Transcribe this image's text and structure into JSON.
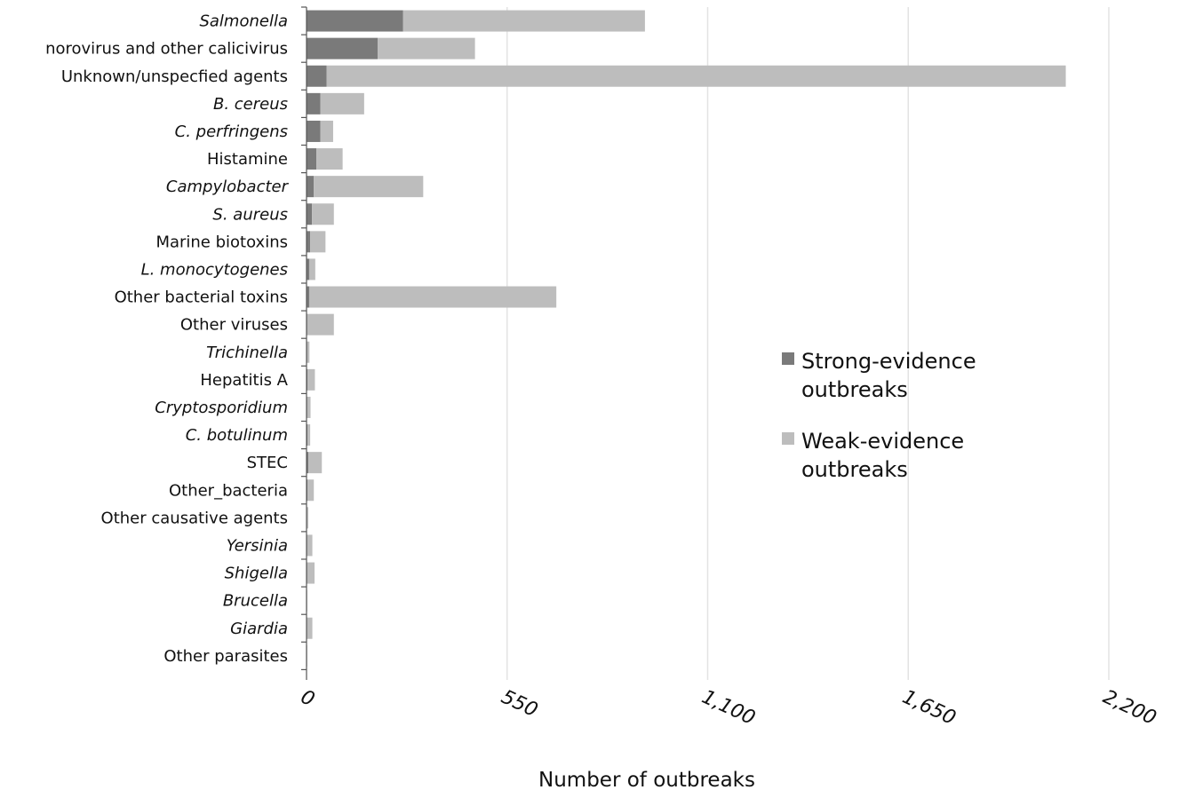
{
  "chart_data": {
    "type": "bar",
    "orientation": "horizontal",
    "stacked": true,
    "categories": [
      "Salmonella",
      "norovirus and other calicivirus",
      "Unknown/unspecfied agents",
      "B. cereus",
      "C. perfringens",
      "Histamine",
      "Campylobacter",
      "S. aureus",
      "Marine biotoxins",
      "L. monocytogenes",
      "Other bacterial toxins",
      "Other viruses",
      "Trichinella",
      "Hepatitis A",
      "Cryptosporidium",
      "C. botulinum",
      "STEC",
      "Other_bacteria",
      "Other causative agents",
      "Yersinia",
      "Shigella",
      "Brucella",
      "Giardia",
      "Other parasites"
    ],
    "italic_categories": [
      "Salmonella",
      "B. cereus",
      "C. perfringens",
      "Campylobacter",
      "S. aureus",
      "L. monocytogenes",
      "Trichinella",
      "Cryptosporidium",
      "C. botulinum",
      "Yersinia",
      "Shigella",
      "Brucella",
      "Giardia"
    ],
    "series": [
      {
        "name": "Strong-evidence outbreaks",
        "color": "#7a7a7a",
        "values": [
          265,
          195,
          55,
          38,
          38,
          27,
          20,
          15,
          10,
          8,
          8,
          2,
          2,
          3,
          2,
          3,
          5,
          3,
          1,
          2,
          2,
          0,
          1,
          0
        ]
      },
      {
        "name": "Weak-evidence outbreaks",
        "color": "#bdbdbd",
        "values": [
          663,
          267,
          2027,
          120,
          35,
          72,
          300,
          60,
          42,
          16,
          677,
          73,
          6,
          20,
          9,
          7,
          37,
          17,
          4,
          14,
          20,
          1,
          15,
          1
        ]
      }
    ],
    "xlabel": "Number of outbreaks",
    "ylabel": "",
    "xlim": [
      0,
      2200
    ],
    "xticks": [
      0,
      550,
      1100,
      1650,
      2200
    ],
    "xtick_labels": [
      "0",
      "550",
      "1,100",
      "1,650",
      "2,200"
    ],
    "grid": "vertical",
    "legend_position": "right",
    "legend_labels": [
      [
        "Strong-evidence",
        "outbreaks"
      ],
      [
        "Weak-evidence",
        "outbreaks"
      ]
    ]
  }
}
